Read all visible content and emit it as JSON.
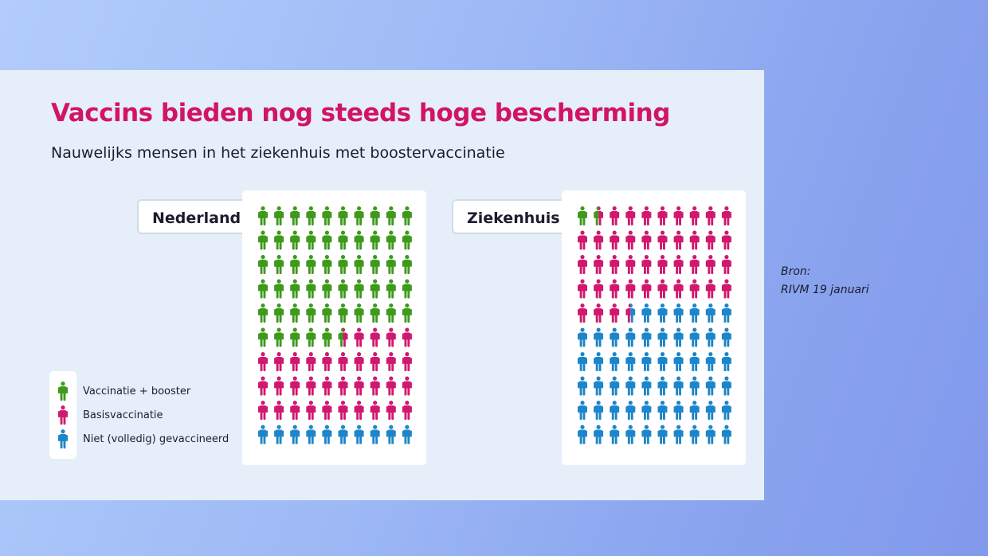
{
  "title": "Vaccins bieden nog steeds hoge bescherming",
  "subtitle": "Nauwelijks mensen in het ziekenhuis met boostervaccinatie",
  "source": {
    "line1": "Bron:",
    "line2": "RIVM 19 januari"
  },
  "colors": {
    "booster": "#3e9a1b",
    "basis": "#d0186f",
    "niet": "#1d86c8",
    "title": "#d21464"
  },
  "chart_data": [
    {
      "type": "pictogram",
      "title": "Nederland",
      "total": 100,
      "series": [
        {
          "name": "Vaccinatie + booster",
          "value": 55.5
        },
        {
          "name": "Basisvaccinatie",
          "value": 34.5
        },
        {
          "name": "Niet (volledig) gevaccineerd",
          "value": 10
        }
      ]
    },
    {
      "type": "pictogram",
      "title": "Ziekenhuis",
      "total": 100,
      "series": [
        {
          "name": "Vaccinatie + booster",
          "value": 1.5
        },
        {
          "name": "Basisvaccinatie",
          "value": 42
        },
        {
          "name": "Niet (volledig) gevaccineerd",
          "value": 56.5
        }
      ]
    }
  ],
  "legend": [
    {
      "label": "Vaccinatie + booster",
      "key": "booster"
    },
    {
      "label": "Basisvaccinatie",
      "key": "basis"
    },
    {
      "label": "Niet (volledig) gevaccineerd",
      "key": "niet"
    }
  ]
}
